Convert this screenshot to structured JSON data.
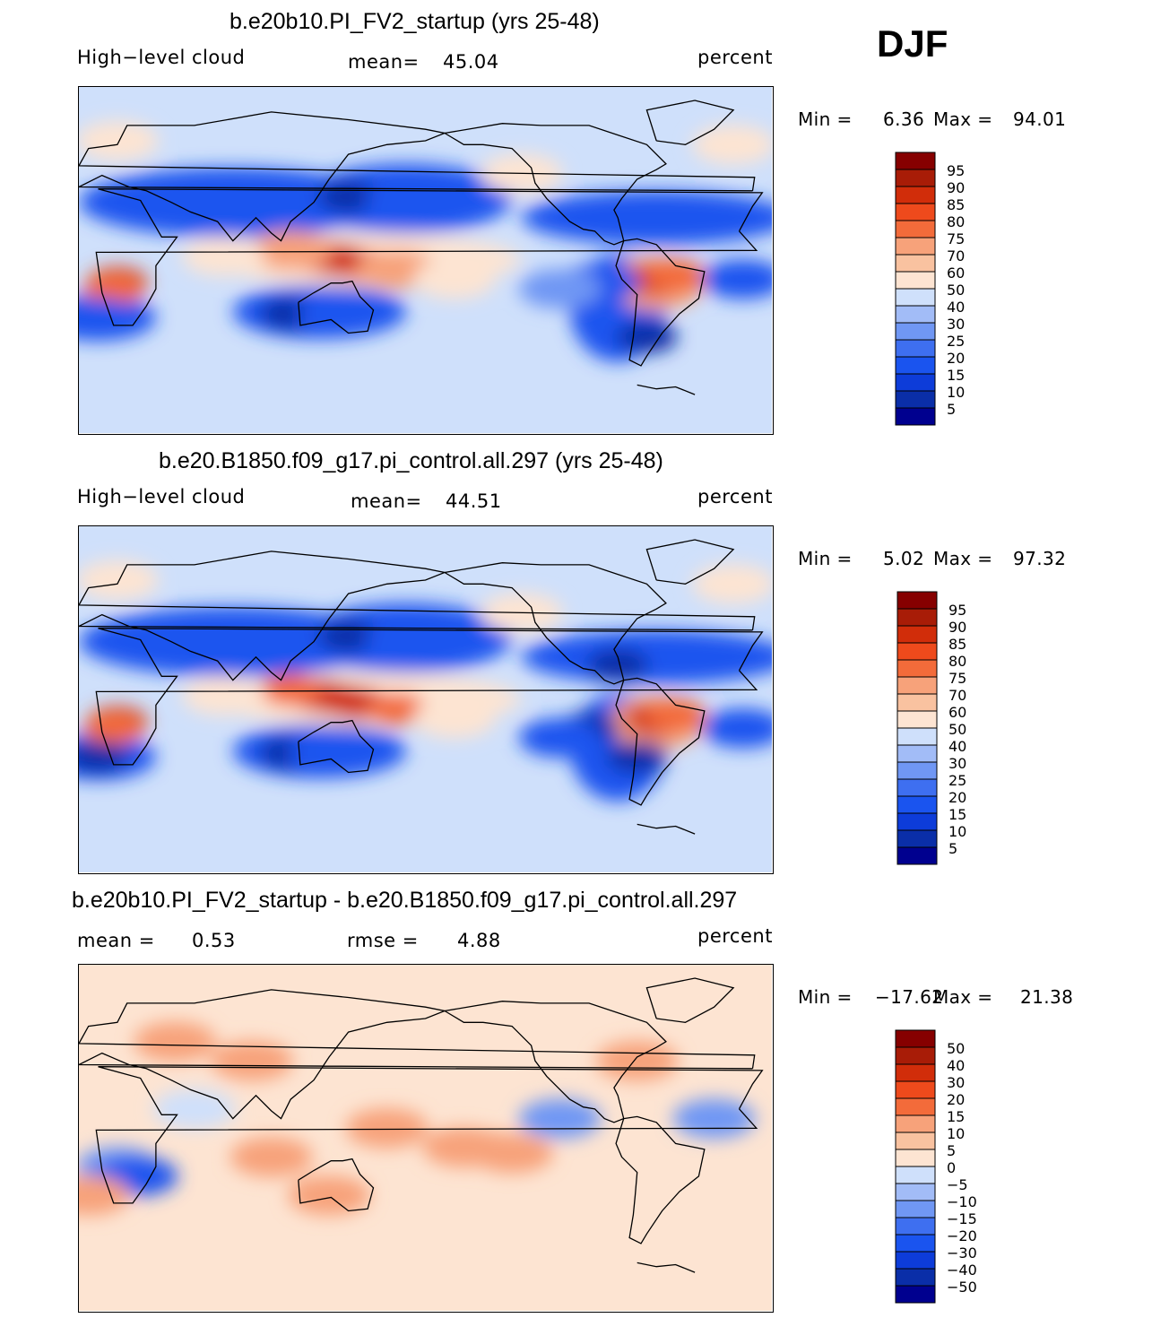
{
  "season": "DJF",
  "colors": {
    "blues": [
      "#00008f",
      "#0a2ea8",
      "#0d3cd9",
      "#1a54ef",
      "#3e6ff0",
      "#7097f4",
      "#a2bcf7",
      "#cfe0fb"
    ],
    "reds": [
      "#fde4d2",
      "#f9c2a0",
      "#f7a27a",
      "#f36b3a",
      "#ee4a1c",
      "#d12d0a",
      "#a81c07",
      "#860000"
    ],
    "continent_line": "#000000"
  },
  "chart_data": [
    {
      "type": "heatmap",
      "title": "b.e20b10.PI_FV2_startup (yrs 25-48)",
      "left_label": "High−level cloud",
      "mean_label": "mean=",
      "mean_value": "45.04",
      "units": "percent",
      "min_label": "Min =",
      "min_value": "6.36",
      "max_label": "Max =",
      "max_value": "94.01",
      "colorbar_levels": [
        "95",
        "90",
        "85",
        "80",
        "75",
        "70",
        "60",
        "50",
        "40",
        "30",
        "25",
        "20",
        "15",
        "10",
        "5"
      ],
      "base_level": 3,
      "blobs": [
        {
          "lon": 20,
          "lat": -12,
          "level": 7
        },
        {
          "lon": 18,
          "lat": -15,
          "level": 6
        },
        {
          "lon": 125,
          "lat": 2,
          "level": 6
        },
        {
          "lon": 150,
          "lat": -3,
          "level": 6
        },
        {
          "lon": 135,
          "lat": 0,
          "level": 7
        },
        {
          "lon": 165,
          "lat": -5,
          "level": 5
        },
        {
          "lon": 110,
          "lat": 5,
          "level": 5
        },
        {
          "lon": 300,
          "lat": -10,
          "level": 7
        },
        {
          "lon": 310,
          "lat": -8,
          "level": 6
        },
        {
          "lon": 75,
          "lat": 2,
          "level": 4
        },
        {
          "lon": 195,
          "lat": -10,
          "level": 4
        },
        {
          "lon": 70,
          "lat": 30,
          "level": 1
        },
        {
          "lon": 140,
          "lat": 33,
          "level": 0
        },
        {
          "lon": 170,
          "lat": 30,
          "level": 1
        },
        {
          "lon": 40,
          "lat": 28,
          "level": 1
        },
        {
          "lon": 280,
          "lat": 25,
          "level": 1
        },
        {
          "lon": 110,
          "lat": -28,
          "level": 0
        },
        {
          "lon": 135,
          "lat": -28,
          "level": 1
        },
        {
          "lon": 10,
          "lat": -30,
          "level": 1
        },
        {
          "lon": 270,
          "lat": -12,
          "level": 1
        },
        {
          "lon": 295,
          "lat": -40,
          "level": 0
        },
        {
          "lon": 250,
          "lat": -15,
          "level": 2
        },
        {
          "lon": 345,
          "lat": -10,
          "level": 1
        },
        {
          "lon": 230,
          "lat": 45,
          "level": 4
        },
        {
          "lon": 20,
          "lat": 62,
          "level": 4
        },
        {
          "lon": 340,
          "lat": 60,
          "level": 4
        }
      ]
    },
    {
      "type": "heatmap",
      "title": "b.e20.B1850.f09_g17.pi_control.all.297 (yrs 25-48)",
      "left_label": "High−level cloud",
      "mean_label": "mean=",
      "mean_value": "44.51",
      "units": "percent",
      "min_label": "Min =",
      "min_value": "5.02",
      "max_label": "Max =",
      "max_value": "97.32",
      "colorbar_levels": [
        "95",
        "90",
        "85",
        "80",
        "75",
        "70",
        "60",
        "50",
        "40",
        "30",
        "25",
        "20",
        "15",
        "10",
        "5"
      ],
      "base_level": 3,
      "blobs": [
        {
          "lon": 20,
          "lat": -12,
          "level": 7
        },
        {
          "lon": 18,
          "lat": -15,
          "level": 6
        },
        {
          "lon": 125,
          "lat": 2,
          "level": 7
        },
        {
          "lon": 145,
          "lat": -2,
          "level": 7
        },
        {
          "lon": 135,
          "lat": 0,
          "level": 7
        },
        {
          "lon": 165,
          "lat": -5,
          "level": 6
        },
        {
          "lon": 110,
          "lat": 5,
          "level": 6
        },
        {
          "lon": 300,
          "lat": -10,
          "level": 7
        },
        {
          "lon": 310,
          "lat": -8,
          "level": 6
        },
        {
          "lon": 75,
          "lat": 2,
          "level": 4
        },
        {
          "lon": 195,
          "lat": -10,
          "level": 4
        },
        {
          "lon": 70,
          "lat": 32,
          "level": 1
        },
        {
          "lon": 140,
          "lat": 33,
          "level": 0
        },
        {
          "lon": 170,
          "lat": 30,
          "level": 1
        },
        {
          "lon": 40,
          "lat": 28,
          "level": 1
        },
        {
          "lon": 280,
          "lat": 18,
          "level": 0
        },
        {
          "lon": 110,
          "lat": -28,
          "level": 0
        },
        {
          "lon": 130,
          "lat": -28,
          "level": 1
        },
        {
          "lon": 10,
          "lat": -30,
          "level": 0
        },
        {
          "lon": 265,
          "lat": -15,
          "level": 0
        },
        {
          "lon": 290,
          "lat": -30,
          "level": 0
        },
        {
          "lon": 250,
          "lat": -20,
          "level": 1
        },
        {
          "lon": 345,
          "lat": -15,
          "level": 1
        },
        {
          "lon": 230,
          "lat": 45,
          "level": 4
        },
        {
          "lon": 20,
          "lat": 62,
          "level": 4
        },
        {
          "lon": 340,
          "lat": 60,
          "level": 4
        }
      ]
    },
    {
      "type": "heatmap",
      "title": "b.e20b10.PI_FV2_startup - b.e20.B1850.f09_g17.pi_control.all.297",
      "left_label": "mean =",
      "left_value": "0.53",
      "mean_label": "rmse =",
      "mean_value": "4.88",
      "units": "percent",
      "min_label": "Min =",
      "min_value": "−17.62",
      "max_label": "Max =",
      "max_value": "21.38",
      "colorbar_levels": [
        "50",
        "40",
        "30",
        "20",
        "15",
        "10",
        "5",
        "0",
        "−5",
        "−10",
        "−15",
        "−20",
        "−30",
        "−40",
        "−50"
      ],
      "base_level": 4,
      "blobs": [
        {
          "lon": 210,
          "lat": -5,
          "level": 6
        },
        {
          "lon": 200,
          "lat": -5,
          "level": 5
        },
        {
          "lon": 225,
          "lat": -8,
          "level": 5
        },
        {
          "lon": 20,
          "lat": -15,
          "level": 2
        },
        {
          "lon": 30,
          "lat": -20,
          "level": 1
        },
        {
          "lon": 100,
          "lat": -10,
          "level": 5
        },
        {
          "lon": 160,
          "lat": 5,
          "level": 5
        },
        {
          "lon": 60,
          "lat": 15,
          "level": 3
        },
        {
          "lon": 330,
          "lat": 10,
          "level": 2
        },
        {
          "lon": 250,
          "lat": 10,
          "level": 2
        },
        {
          "lon": 50,
          "lat": 50,
          "level": 5
        },
        {
          "lon": 90,
          "lat": 40,
          "level": 5
        },
        {
          "lon": 290,
          "lat": 40,
          "level": 5
        },
        {
          "lon": 130,
          "lat": -30,
          "level": 5
        },
        {
          "lon": 5,
          "lat": -30,
          "level": 5
        }
      ]
    }
  ]
}
